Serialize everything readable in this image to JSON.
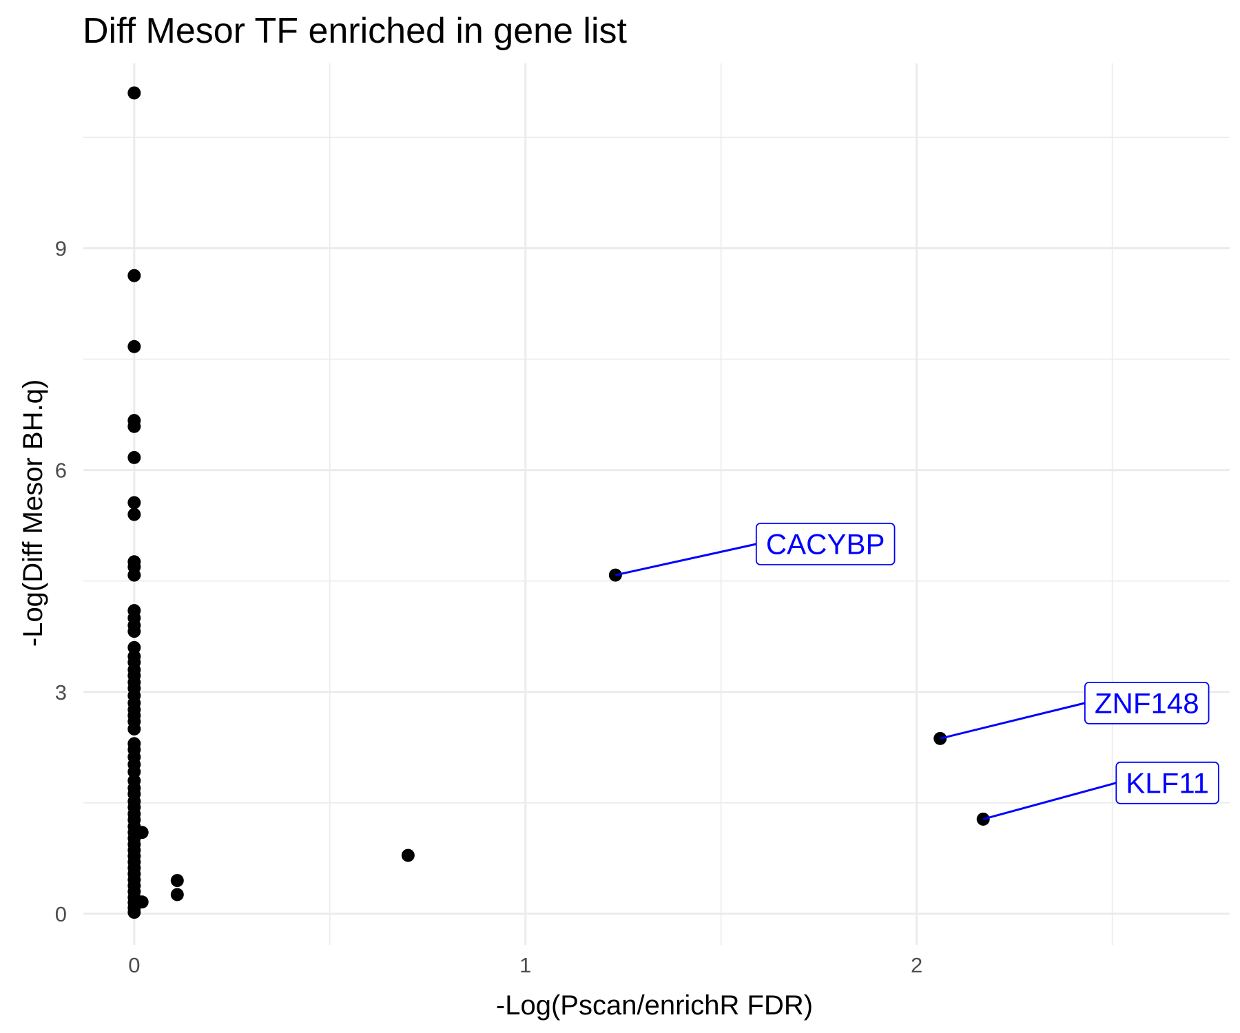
{
  "chart_data": {
    "type": "scatter",
    "title": "Diff Mesor TF enriched in gene list",
    "xlabel": "-Log(Pscan/enrichR FDR)",
    "ylabel": "-Log(Diff Mesor BH.q)",
    "xlim": [
      -0.13,
      2.8
    ],
    "ylim": [
      -0.42,
      11.5
    ],
    "x_ticks": [
      0,
      1,
      2
    ],
    "x_tick_labels": [
      "0",
      "1",
      "2"
    ],
    "y_ticks": [
      0,
      3,
      6,
      9
    ],
    "y_tick_labels": [
      "0",
      "3",
      "6",
      "9"
    ],
    "grid": true,
    "legend": "none",
    "point_color": "#000000",
    "label_color": "#0000ff",
    "points": [
      {
        "x": 0,
        "y": 11.1
      },
      {
        "x": 0,
        "y": 8.63
      },
      {
        "x": 0,
        "y": 7.67
      },
      {
        "x": 0,
        "y": 6.67
      },
      {
        "x": 0,
        "y": 6.59
      },
      {
        "x": 0,
        "y": 6.17
      },
      {
        "x": 0,
        "y": 5.56
      },
      {
        "x": 0,
        "y": 5.4
      },
      {
        "x": 0,
        "y": 4.76
      },
      {
        "x": 0,
        "y": 4.69
      },
      {
        "x": 0,
        "y": 4.58
      },
      {
        "x": 0,
        "y": 4.1
      },
      {
        "x": 0,
        "y": 4.0
      },
      {
        "x": 0,
        "y": 3.9
      },
      {
        "x": 0,
        "y": 3.82
      },
      {
        "x": 0,
        "y": 3.6
      },
      {
        "x": 0,
        "y": 3.48
      },
      {
        "x": 0,
        "y": 3.4
      },
      {
        "x": 0,
        "y": 3.3
      },
      {
        "x": 0,
        "y": 3.22
      },
      {
        "x": 0,
        "y": 3.13
      },
      {
        "x": 0,
        "y": 3.05
      },
      {
        "x": 0,
        "y": 2.95
      },
      {
        "x": 0,
        "y": 2.85
      },
      {
        "x": 0,
        "y": 2.76
      },
      {
        "x": 0,
        "y": 2.68
      },
      {
        "x": 0,
        "y": 2.6
      },
      {
        "x": 0,
        "y": 2.5
      },
      {
        "x": 0,
        "y": 2.3
      },
      {
        "x": 0,
        "y": 2.22
      },
      {
        "x": 0,
        "y": 2.12
      },
      {
        "x": 0,
        "y": 2.02
      },
      {
        "x": 0,
        "y": 1.92
      },
      {
        "x": 0,
        "y": 1.8
      },
      {
        "x": 0,
        "y": 1.7
      },
      {
        "x": 0,
        "y": 1.62
      },
      {
        "x": 0,
        "y": 1.52
      },
      {
        "x": 0,
        "y": 1.44
      },
      {
        "x": 0,
        "y": 1.35
      },
      {
        "x": 0,
        "y": 1.27
      },
      {
        "x": 0,
        "y": 1.18
      },
      {
        "x": 0,
        "y": 1.1
      },
      {
        "x": 0,
        "y": 1.02
      },
      {
        "x": 0,
        "y": 0.94
      },
      {
        "x": 0,
        "y": 0.86
      },
      {
        "x": 0,
        "y": 0.78
      },
      {
        "x": 0,
        "y": 0.7
      },
      {
        "x": 0,
        "y": 0.62
      },
      {
        "x": 0,
        "y": 0.54
      },
      {
        "x": 0,
        "y": 0.46
      },
      {
        "x": 0,
        "y": 0.38
      },
      {
        "x": 0,
        "y": 0.3
      },
      {
        "x": 0,
        "y": 0.22
      },
      {
        "x": 0,
        "y": 0.15
      },
      {
        "x": 0,
        "y": 0.08
      },
      {
        "x": 0,
        "y": 0.02
      },
      {
        "x": 0.02,
        "y": 1.1
      },
      {
        "x": 0.02,
        "y": 0.16
      },
      {
        "x": 0.11,
        "y": 0.45
      },
      {
        "x": 0.11,
        "y": 0.26
      },
      {
        "x": 0.7,
        "y": 0.79
      },
      {
        "x": 1.23,
        "y": 4.58,
        "label": "CACYBP"
      },
      {
        "x": 2.06,
        "y": 2.37,
        "label": "ZNF148"
      },
      {
        "x": 2.17,
        "y": 1.28,
        "label": "KLF11"
      }
    ],
    "annotations": [
      {
        "text": "CACYBP",
        "x": 1.23,
        "y": 4.58,
        "label_x": 1.59,
        "label_y": 5.0
      },
      {
        "text": "ZNF148",
        "x": 2.06,
        "y": 2.37,
        "label_x": 2.43,
        "label_y": 2.85
      },
      {
        "text": "KLF11",
        "x": 2.17,
        "y": 1.28,
        "label_x": 2.51,
        "label_y": 1.77
      }
    ]
  }
}
